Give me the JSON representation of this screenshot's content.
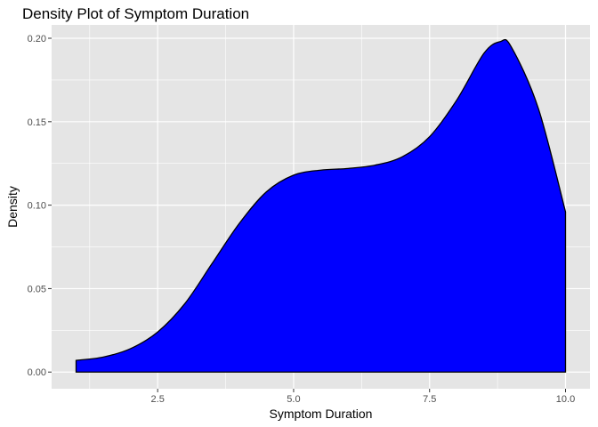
{
  "chart_data": {
    "type": "area",
    "title": "Density Plot of Symptom Duration",
    "xlabel": "Symptom Duration",
    "ylabel": "Density",
    "xlim": [
      0.55,
      10.45
    ],
    "ylim": [
      -0.01,
      0.208
    ],
    "x_ticks": [
      2.5,
      5.0,
      7.5,
      10.0
    ],
    "x_tick_labels": [
      "2.5",
      "5.0",
      "7.5",
      "10.0"
    ],
    "y_ticks": [
      0.0,
      0.05,
      0.1,
      0.15,
      0.2
    ],
    "y_tick_labels": [
      "0.00",
      "0.05",
      "0.10",
      "0.15",
      "0.20"
    ],
    "grid": true,
    "legend": "none",
    "colors": {
      "fill": "#0000ff",
      "outline": "#000000",
      "panel": "#e5e5e5",
      "grid": "#ffffff"
    },
    "series": [
      {
        "x": [
          1.0,
          1.5,
          2.0,
          2.5,
          3.0,
          3.5,
          4.0,
          4.5,
          5.0,
          5.5,
          6.0,
          6.5,
          7.0,
          7.5,
          8.0,
          8.5,
          8.8,
          9.0,
          9.5,
          10.0
        ],
        "y": [
          0.007,
          0.009,
          0.014,
          0.024,
          0.041,
          0.065,
          0.089,
          0.108,
          0.118,
          0.121,
          0.122,
          0.124,
          0.129,
          0.141,
          0.163,
          0.191,
          0.198,
          0.195,
          0.158,
          0.096
        ]
      }
    ]
  }
}
